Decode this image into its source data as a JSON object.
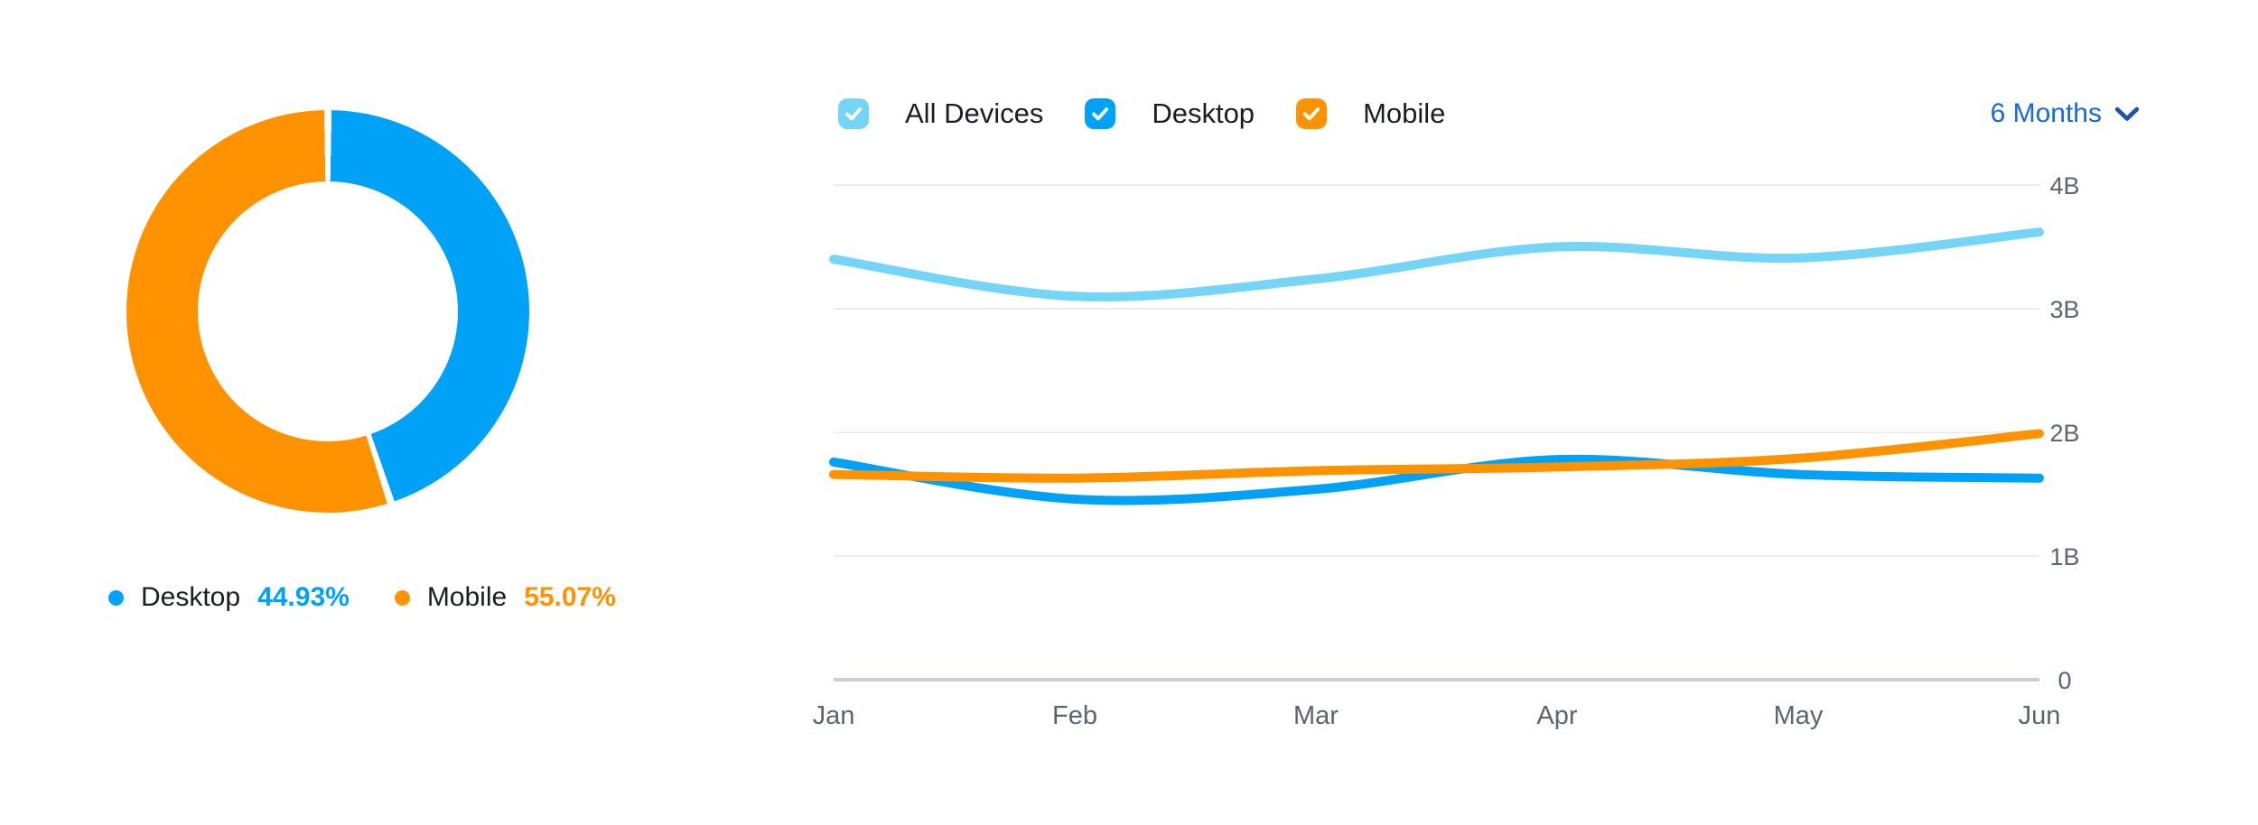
{
  "ui": {
    "period_label": "6 Months",
    "background": "#ffffff",
    "link_color": "#1668dc",
    "chevron_color": "#1b55a9",
    "axis_text_color": "#5b6473",
    "label_text_color": "#1a1d21",
    "gridline_color": "#ecedf1",
    "axis_line_color": "#c9ced8"
  },
  "chart_data": [
    {
      "type": "pie",
      "donut": true,
      "title": "",
      "labels": [
        "Desktop",
        "Mobile"
      ],
      "values": [
        44.93,
        55.07
      ],
      "value_labels": [
        "44.93%",
        "55.07%"
      ],
      "unit": "%",
      "colors": [
        "#00a2f8",
        "#ff9200"
      ],
      "start_angle": "top",
      "direction": "clockwise",
      "hole_ratio": 0.645,
      "segment_gap_pct": 0.3,
      "legend_position": "bottom"
    },
    {
      "type": "line",
      "title": "",
      "xlabel": "",
      "ylabel": "",
      "x": [
        "Jan",
        "Feb",
        "Mar",
        "Apr",
        "May",
        "Jun"
      ],
      "series": [
        {
          "name": "All Devices",
          "color": "#74d5f7",
          "values": [
            3.4,
            3.1,
            3.24,
            3.5,
            3.41,
            3.62
          ]
        },
        {
          "name": "Desktop",
          "color": "#00a2f8",
          "values": [
            1.76,
            1.46,
            1.54,
            1.78,
            1.66,
            1.63
          ]
        },
        {
          "name": "Mobile",
          "color": "#ff9200",
          "values": [
            1.66,
            1.63,
            1.69,
            1.72,
            1.79,
            1.99
          ]
        }
      ],
      "ylim": [
        0,
        4
      ],
      "y_ticks": [
        {
          "label": "4B",
          "value": 4
        },
        {
          "label": "3B",
          "value": 3
        },
        {
          "label": "2B",
          "value": 2
        },
        {
          "label": "1B",
          "value": 1
        },
        {
          "label": "0",
          "value": 0
        }
      ],
      "y_axis_side": "right",
      "grid": "horizontal",
      "legend_position": "top",
      "legend_items": [
        {
          "label": "All Devices",
          "color": "#74d5f7",
          "checked": true
        },
        {
          "label": "Desktop",
          "color": "#00a2f8",
          "checked": true
        },
        {
          "label": "Mobile",
          "color": "#ff9200",
          "checked": true
        }
      ]
    }
  ]
}
